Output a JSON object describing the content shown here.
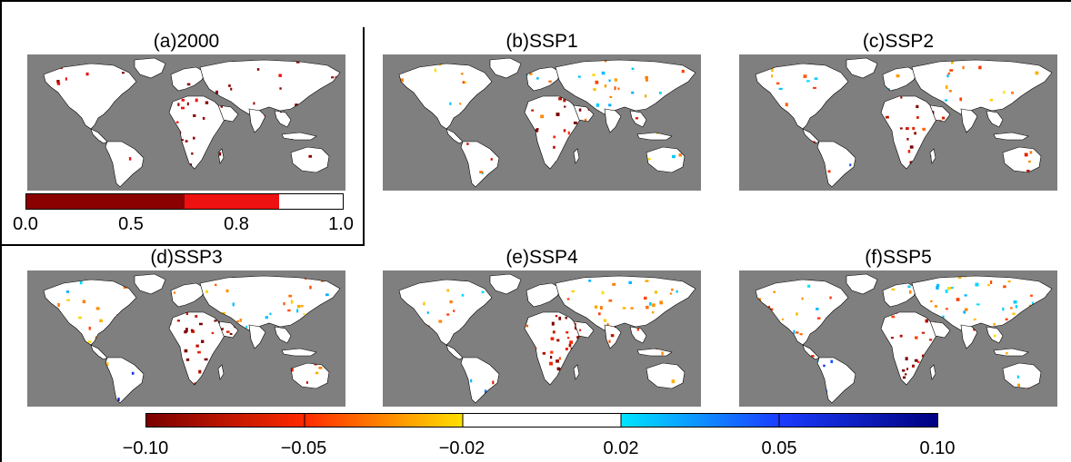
{
  "panels": {
    "a": {
      "title": "(a)2000"
    },
    "b": {
      "title": "(b)SSP1"
    },
    "c": {
      "title": "(c)SSP2"
    },
    "d": {
      "title": "(d)SSP3"
    },
    "e": {
      "title": "(e)SSP4"
    },
    "f": {
      "title": "(f)SSP5"
    }
  },
  "colorbar_small": {
    "ticks": [
      "0.0",
      "0.5",
      "0.8",
      "1.0"
    ],
    "segments": [
      {
        "from": 0.0,
        "to": 0.5,
        "color": "#8b0000"
      },
      {
        "from": 0.5,
        "to": 0.8,
        "color": "#ee1111"
      },
      {
        "from": 0.8,
        "to": 1.0,
        "color": "#ffffff"
      }
    ]
  },
  "colorbar_large": {
    "ticks": [
      "−0.10",
      "−0.05",
      "−0.02",
      "0.02",
      "0.05",
      "0.10"
    ],
    "stops": [
      {
        "value": -0.1,
        "color": "#7a0000"
      },
      {
        "value": -0.05,
        "color": "#ff2a00"
      },
      {
        "value": -0.02,
        "color": "#ffe000"
      },
      {
        "value": 0.02,
        "color": "#00e5ff"
      },
      {
        "value": 0.05,
        "color": "#1b3cff"
      },
      {
        "value": 0.1,
        "color": "#000080"
      }
    ],
    "neutral_band": {
      "from": -0.02,
      "to": 0.02,
      "color": "#ffffff"
    }
  },
  "map_colors": {
    "ocean": "#7f7f7f",
    "land_white": "#ffffff",
    "outline": "#000000"
  }
}
